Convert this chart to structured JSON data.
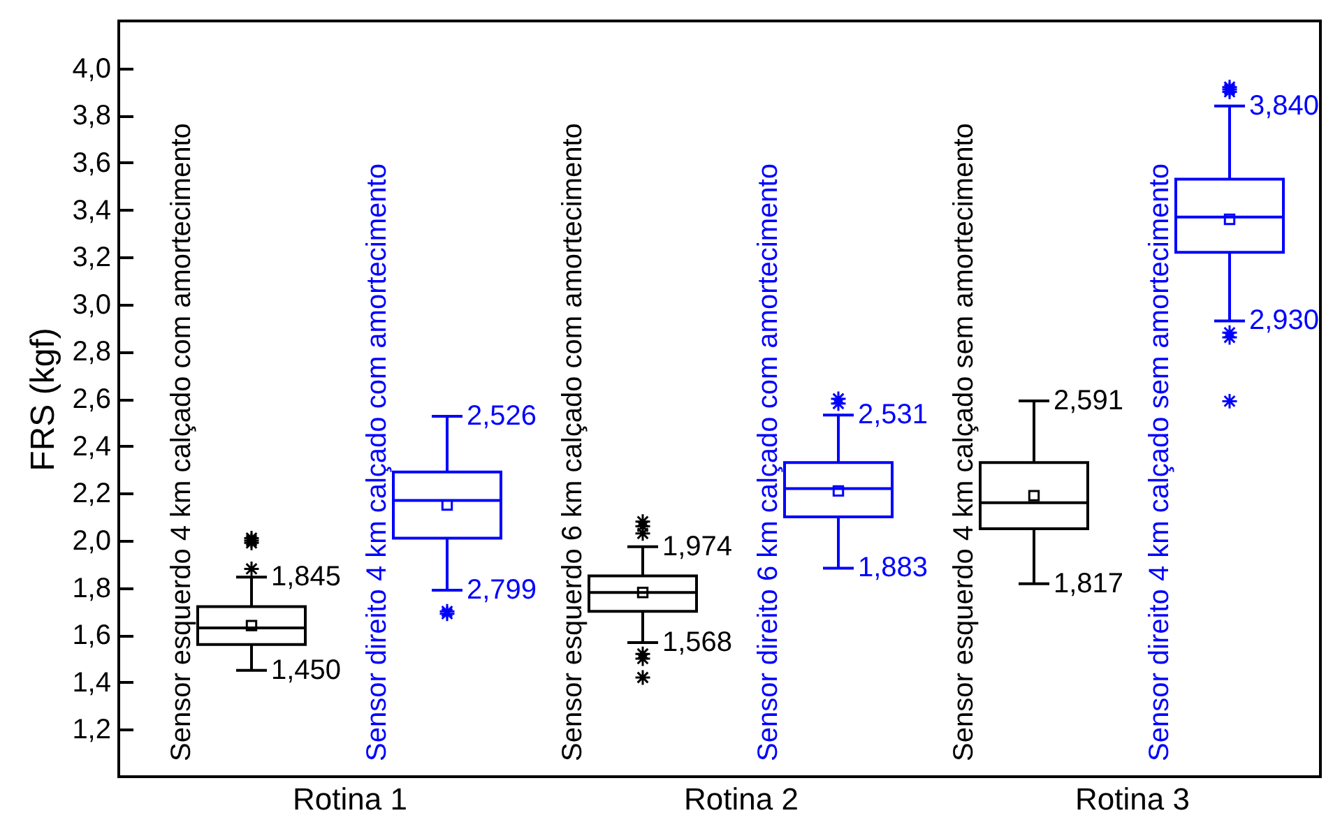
{
  "chart_data": {
    "type": "box",
    "ylabel": "FRS (kgf)",
    "categories": [
      "Rotina 1",
      "Rotina 2",
      "Rotina 3"
    ],
    "ylim": [
      1.0,
      4.2
    ],
    "yticks": [
      {
        "value": 1.2,
        "label": "1,2"
      },
      {
        "value": 1.4,
        "label": "1,4"
      },
      {
        "value": 1.6,
        "label": "1,6"
      },
      {
        "value": 1.8,
        "label": "1,8"
      },
      {
        "value": 2.0,
        "label": "2,0"
      },
      {
        "value": 2.2,
        "label": "2,2"
      },
      {
        "value": 2.4,
        "label": "2,4"
      },
      {
        "value": 2.6,
        "label": "2,6"
      },
      {
        "value": 2.8,
        "label": "2,8"
      },
      {
        "value": 3.0,
        "label": "3,0"
      },
      {
        "value": 3.2,
        "label": "3,2"
      },
      {
        "value": 3.4,
        "label": "3,4"
      },
      {
        "value": 3.6,
        "label": "3,6"
      },
      {
        "value": 3.8,
        "label": "3,8"
      },
      {
        "value": 4.0,
        "label": "4,0"
      }
    ],
    "marker": "star",
    "series": [
      {
        "color": "#000000",
        "boxes": [
          {
            "low": 1.45,
            "q1": 1.56,
            "median": 1.63,
            "q3": 1.72,
            "high": 1.845,
            "mean": 1.64,
            "outliers": [
              1.88,
              1.99,
              2.0,
              2.01
            ]
          },
          {
            "low": 1.568,
            "q1": 1.7,
            "median": 1.78,
            "q3": 1.85,
            "high": 1.974,
            "mean": 1.78,
            "outliers": [
              1.42,
              1.5,
              1.52,
              2.03,
              2.06,
              2.08
            ]
          },
          {
            "low": 1.817,
            "q1": 2.05,
            "median": 2.16,
            "q3": 2.33,
            "high": 2.591,
            "mean": 2.19
          }
        ],
        "value_labels": [
          [
            "1,450",
            "1,845"
          ],
          [
            "1,568",
            "1,974"
          ],
          [
            "1,817",
            "2,591"
          ]
        ]
      },
      {
        "color": "#0000ff",
        "boxes": [
          {
            "low": 1.79,
            "q1": 2.01,
            "median": 2.17,
            "q3": 2.29,
            "high": 2.526,
            "mean": 2.15,
            "outliers": [
              1.69,
              1.7
            ]
          },
          {
            "low": 1.883,
            "q1": 2.1,
            "median": 2.22,
            "q3": 2.33,
            "high": 2.531,
            "mean": 2.21,
            "outliers": [
              2.58,
              2.6
            ]
          },
          {
            "low": 2.93,
            "q1": 3.22,
            "median": 3.37,
            "q3": 3.53,
            "high": 3.84,
            "mean": 3.36,
            "outliers": [
              2.59,
              2.86,
              2.88,
              3.9,
              3.91,
              3.92
            ]
          }
        ],
        "value_labels": [
          [
            "2,799",
            "2,526"
          ],
          [
            "1,883",
            "2,531"
          ],
          [
            "2,930",
            "3,840"
          ]
        ]
      }
    ],
    "annotations": [
      "Sensor esquerdo 4 km calçado com amortecimento",
      "Sensor direito 4 km calçado com amortecimento",
      "Sensor esquerdo 6 km calçado com amortecimento",
      "Sensor direito 6 km calçado com amortecimento",
      "Sensor esquerdo 4 km calçado sem amortecimento",
      "Sensor direito 4 km calçado sem amortecimento"
    ]
  }
}
